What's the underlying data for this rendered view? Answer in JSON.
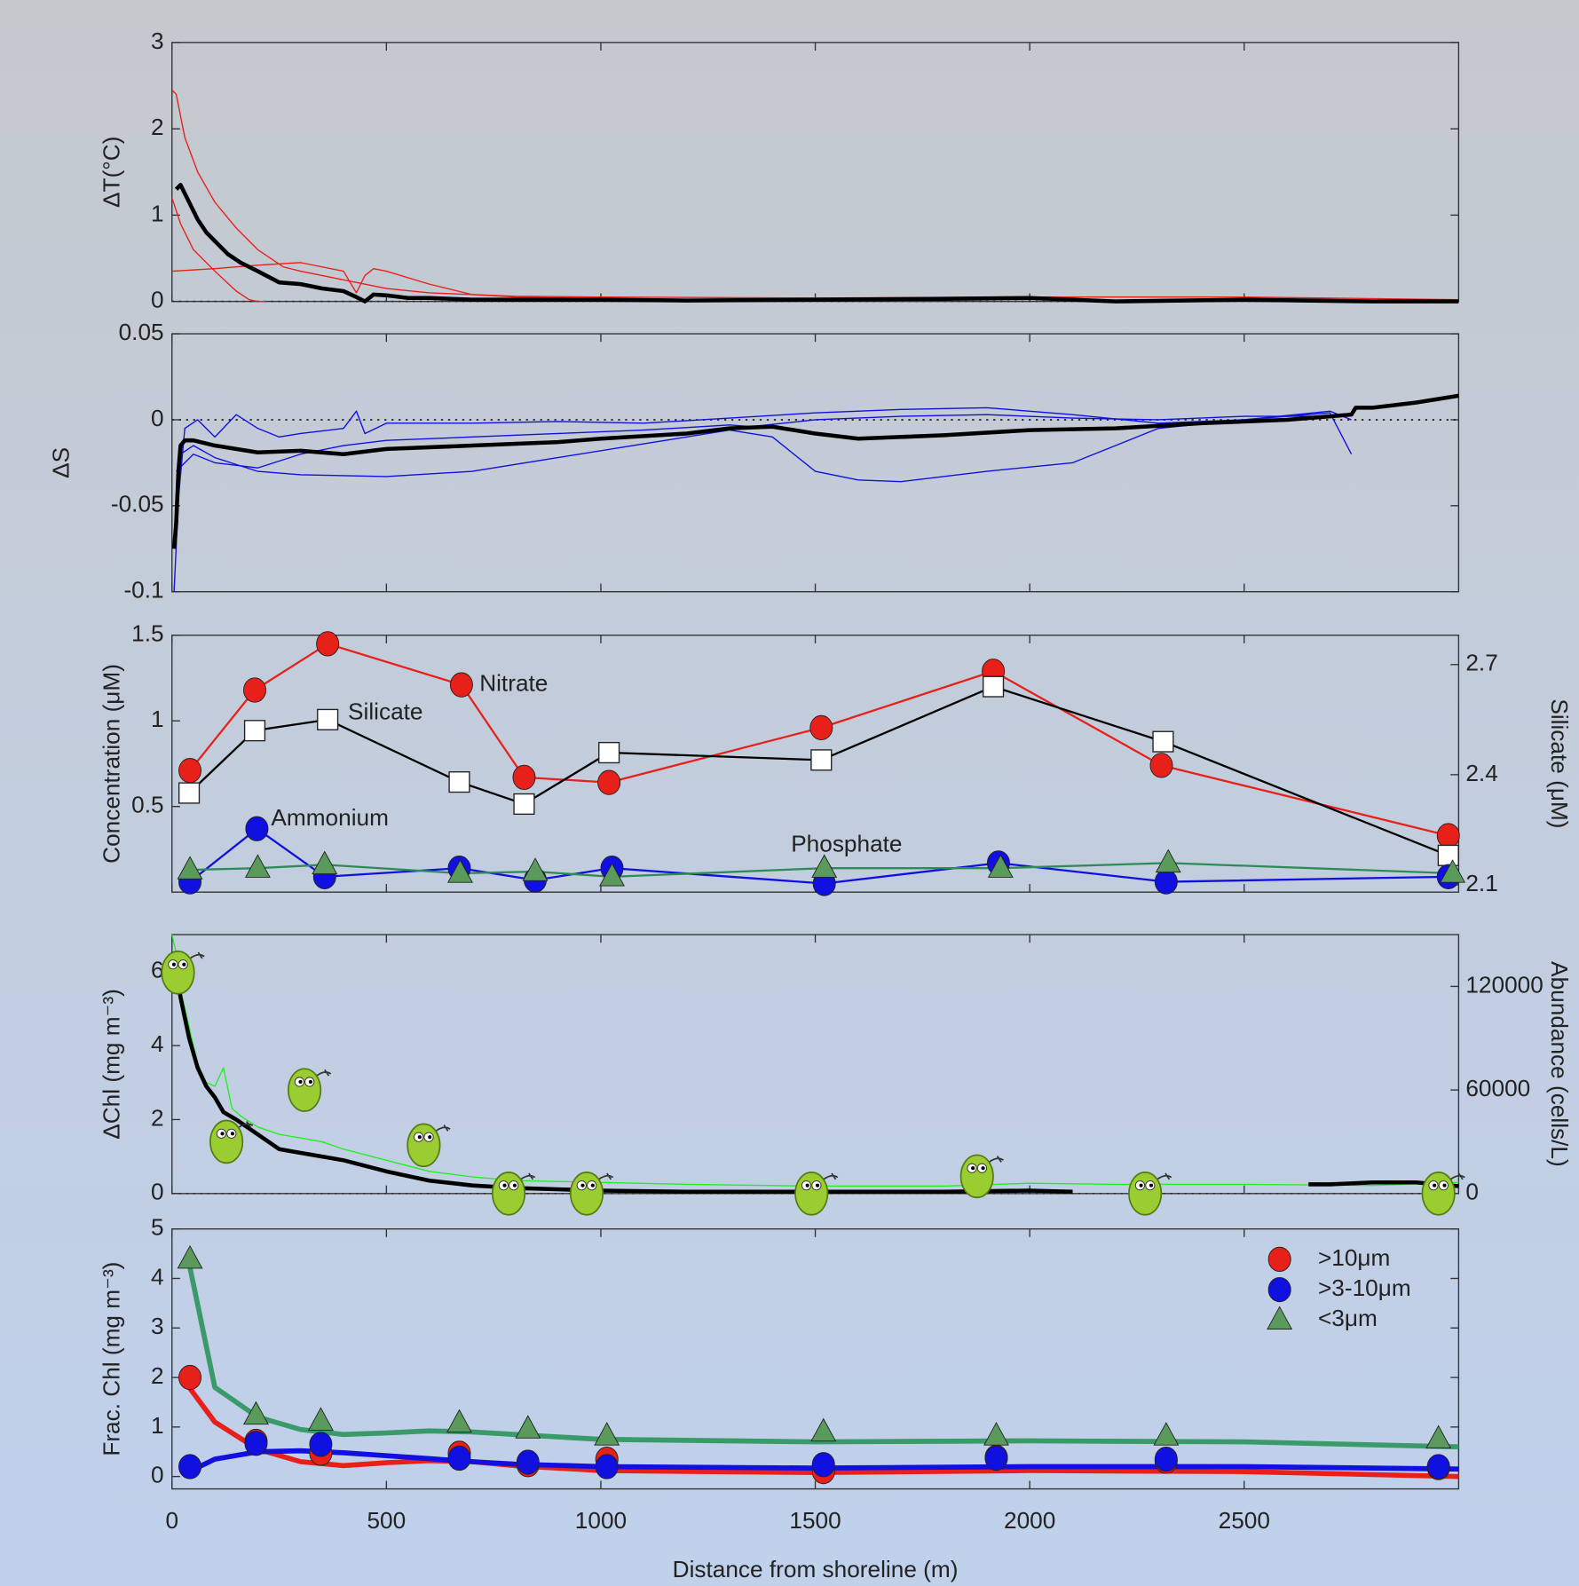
{
  "chart_data": [
    {
      "type": "line",
      "ylabel": "ΔT(°C)",
      "ylim": [
        0,
        3
      ],
      "yticks": [
        0,
        1,
        2,
        3
      ],
      "zero_line": true,
      "series": [
        {
          "color": "#e8201a",
          "width": 1.2,
          "x": [
            0,
            10,
            30,
            60,
            100,
            150,
            200,
            260,
            300,
            350,
            400,
            500,
            600,
            800,
            1000,
            1500,
            2000,
            2500,
            3000
          ],
          "values": [
            2.45,
            2.4,
            1.9,
            1.5,
            1.15,
            0.85,
            0.6,
            0.4,
            0.35,
            0.3,
            0.25,
            0.15,
            0.1,
            0.06,
            0.05,
            0.04,
            0.05,
            0.05,
            0.02
          ]
        },
        {
          "color": "#e8201a",
          "width": 1.2,
          "x": [
            0,
            20,
            50,
            100,
            150,
            180,
            200,
            220
          ],
          "values": [
            1.2,
            0.9,
            0.6,
            0.35,
            0.12,
            0.02,
            0,
            0
          ]
        },
        {
          "color": "#e8201a",
          "width": 1.2,
          "x": [
            0,
            100,
            200,
            300,
            400,
            430,
            450,
            470,
            500,
            600,
            700,
            800,
            1000
          ],
          "values": [
            0.35,
            0.38,
            0.42,
            0.45,
            0.35,
            0.1,
            0.3,
            0.38,
            0.35,
            0.2,
            0.08,
            0.05,
            0.03
          ]
        },
        {
          "color": "#000000",
          "width": 4,
          "x": [
            10,
            20,
            40,
            60,
            80,
            100,
            130,
            160,
            200,
            250,
            300,
            350,
            400,
            430,
            450,
            470,
            500,
            550,
            600,
            700,
            800,
            1000,
            1200,
            1500,
            1800,
            2000,
            2200,
            2500,
            2800,
            3000
          ],
          "values": [
            1.3,
            1.35,
            1.15,
            0.95,
            0.8,
            0.7,
            0.55,
            0.45,
            0.35,
            0.22,
            0.2,
            0.15,
            0.12,
            0.05,
            0,
            0.08,
            0.07,
            0.04,
            0.04,
            0.02,
            0.02,
            0.02,
            0.01,
            0.02,
            0.03,
            0.04,
            0,
            0.02,
            0,
            0
          ]
        }
      ]
    },
    {
      "type": "line",
      "ylabel": "ΔS",
      "ylim": [
        -0.1,
        0.05
      ],
      "yticks": [
        -0.1,
        -0.05,
        0,
        0.05
      ],
      "zero_line": true,
      "series": [
        {
          "color": "#1010e0",
          "width": 1.2,
          "x": [
            5,
            20,
            50,
            100,
            200,
            300,
            500,
            700,
            900,
            1100,
            1300,
            1400,
            1500,
            1600,
            1700,
            1900,
            2100,
            2300,
            2500,
            2700,
            2750
          ],
          "values": [
            -0.1,
            -0.02,
            -0.015,
            -0.022,
            -0.03,
            -0.032,
            -0.033,
            -0.03,
            -0.022,
            -0.014,
            -0.006,
            -0.01,
            -0.03,
            -0.035,
            -0.036,
            -0.03,
            -0.025,
            -0.005,
            0,
            0.005,
            0
          ]
        },
        {
          "color": "#1010e0",
          "width": 1.2,
          "x": [
            10,
            30,
            60,
            100,
            150,
            200,
            250,
            300,
            400,
            430,
            450,
            500,
            700,
            900,
            1100,
            1300,
            1500,
            1700,
            1900,
            2100,
            2300,
            2500,
            2700,
            2750
          ],
          "values": [
            -0.06,
            -0.005,
            0,
            -0.01,
            0.003,
            -0.005,
            -0.01,
            -0.008,
            -0.005,
            0.005,
            -0.008,
            -0.002,
            -0.002,
            -0.001,
            -0.002,
            0.001,
            0.004,
            0.006,
            0.007,
            0.003,
            -0.002,
            0,
            0.004,
            -0.02
          ]
        },
        {
          "color": "#1010e0",
          "width": 1.2,
          "x": [
            10,
            50,
            100,
            200,
            300,
            400,
            500,
            700,
            900,
            1100,
            1300,
            1350,
            1500,
            1700,
            1900,
            2100,
            2300,
            2500,
            2700
          ],
          "values": [
            -0.03,
            -0.02,
            -0.025,
            -0.028,
            -0.02,
            -0.015,
            -0.012,
            -0.01,
            -0.008,
            -0.006,
            -0.003,
            -0.004,
            0,
            0.002,
            0.003,
            0.001,
            0,
            0.002,
            0.002
          ]
        },
        {
          "color": "#000000",
          "width": 4,
          "x": [
            5,
            10,
            15,
            20,
            30,
            50,
            100,
            200,
            300,
            400,
            500,
            700,
            900,
            1000,
            1200,
            1300,
            1400,
            1500,
            1600,
            1800,
            2000,
            2200,
            2400,
            2600,
            2700,
            2750,
            2760,
            2800,
            2900,
            3000
          ],
          "values": [
            -0.075,
            -0.06,
            -0.03,
            -0.015,
            -0.012,
            -0.012,
            -0.015,
            -0.019,
            -0.018,
            -0.02,
            -0.017,
            -0.015,
            -0.013,
            -0.011,
            -0.008,
            -0.005,
            -0.004,
            -0.008,
            -0.011,
            -0.009,
            -0.006,
            -0.005,
            -0.002,
            0,
            0.002,
            0.003,
            0.007,
            0.007,
            0.01,
            0.014
          ]
        }
      ]
    },
    {
      "type": "line",
      "ylabel": "Concentration (μM)",
      "y2label": "Silicate (μM)",
      "ylim": [
        0,
        1.5
      ],
      "yticks": [
        0.5,
        1,
        1.5
      ],
      "y2lim": [
        2.08,
        2.78
      ],
      "y2ticks": [
        2.1,
        2.4,
        2.7
      ],
      "series": [
        {
          "name": "Nitrate",
          "color": "#e8201a",
          "width": 2,
          "marker": "circle",
          "x": [
            42,
            193,
            363,
            675,
            821,
            1019,
            1514,
            1915,
            2307,
            2976
          ],
          "values": [
            0.71,
            1.18,
            1.45,
            1.21,
            0.67,
            0.64,
            0.96,
            1.29,
            0.74,
            0.33
          ]
        },
        {
          "name": "Silicate",
          "color": "#000000",
          "marker_fill": "#ffffff",
          "width": 2,
          "marker": "square",
          "axis": "y2",
          "x": [
            40,
            193,
            363,
            670,
            821,
            1019,
            1514,
            1915,
            2311,
            2976
          ],
          "values": [
            2.35,
            2.52,
            2.55,
            2.38,
            2.32,
            2.46,
            2.44,
            2.64,
            2.49,
            2.18
          ]
        },
        {
          "name": "Ammonium",
          "color": "#1010e0",
          "width": 2,
          "marker": "circle",
          "x": [
            42,
            198,
            356,
            670,
            847,
            1026,
            1521,
            1927,
            2318,
            2976
          ],
          "values": [
            0.06,
            0.37,
            0.09,
            0.14,
            0.07,
            0.14,
            0.05,
            0.17,
            0.06,
            0.09
          ]
        },
        {
          "name": "Phosphate",
          "color": "#2e8b57",
          "marker_fill": "#5a9a5a",
          "width": 2,
          "marker": "triangle",
          "x": [
            42,
            200,
            356,
            672,
            847,
            1026,
            1521,
            1932,
            2323,
            2986
          ],
          "values": [
            0.13,
            0.14,
            0.16,
            0.11,
            0.12,
            0.09,
            0.14,
            0.14,
            0.17,
            0.11
          ]
        }
      ]
    },
    {
      "type": "line",
      "ylabel": "ΔChl (mg m⁻³)",
      "y2label": "Abundance (cells/L)",
      "ylim": [
        0,
        7
      ],
      "yticks": [
        0,
        2,
        4,
        6
      ],
      "y2lim": [
        0,
        150000
      ],
      "y2ticks": [
        0,
        60000,
        120000
      ],
      "zero_line": true,
      "series": [
        {
          "color": "#22ee22",
          "width": 1.2,
          "x": [
            0,
            10,
            20,
            40,
            60,
            80,
            100,
            120,
            140,
            160,
            200,
            250,
            300,
            350,
            400,
            500,
            600,
            700,
            800,
            1000,
            1200,
            1500,
            1800,
            2000,
            2200,
            2500,
            2800,
            3000
          ],
          "values": [
            7,
            6.5,
            5.5,
            4.5,
            3.5,
            3,
            2.9,
            3.4,
            2.3,
            2.1,
            1.8,
            1.6,
            1.5,
            1.4,
            1.2,
            0.9,
            0.6,
            0.45,
            0.35,
            0.3,
            0.25,
            0.2,
            0.2,
            0.28,
            0.25,
            0.25,
            0.22,
            0.3
          ]
        },
        {
          "color": "#000000",
          "width": 4,
          "x": [
            5,
            10,
            20,
            40,
            60,
            80,
            100,
            120,
            150,
            200,
            250,
            300,
            350,
            400,
            500,
            600,
            700,
            800,
            1000,
            1200,
            1500,
            1800,
            2000,
            2100,
            2400,
            2650,
            2700,
            2800,
            2900,
            3000
          ],
          "values": [
            6.3,
            6,
            5.3,
            4.2,
            3.4,
            2.9,
            2.6,
            2.2,
            2,
            1.6,
            1.2,
            1.1,
            1,
            0.9,
            0.6,
            0.35,
            0.22,
            0.15,
            0.08,
            0.05,
            0.05,
            0.05,
            0.08,
            0.05,
            null,
            0.25,
            0.25,
            0.3,
            0.3,
            0.2
          ]
        },
        {
          "color": "#9acd32",
          "marker": "cell",
          "connect": false,
          "axis": "y2",
          "x": [
            14,
            127,
            309,
            587,
            785,
            967,
            1491,
            1877,
            2269,
            2953
          ],
          "values": [
            128000,
            30000,
            60000,
            28000,
            0,
            0,
            0,
            10000,
            0,
            0
          ]
        }
      ]
    },
    {
      "type": "line",
      "ylabel": "Frac. Chl (mg m⁻³)",
      "xlabel": "Distance from shoreline (m)",
      "xlim": [
        0,
        3000
      ],
      "xticks": [
        0,
        500,
        1000,
        1500,
        2000,
        2500
      ],
      "ylim": [
        -0.25,
        5
      ],
      "yticks": [
        0,
        1,
        2,
        3,
        4,
        5
      ],
      "legend": "upper right",
      "x": [
        42,
        196,
        347,
        670,
        830,
        1014,
        1519,
        1922,
        2318,
        2953
      ],
      "fit_x": [
        40,
        100,
        200,
        300,
        400,
        500,
        600,
        700,
        800,
        1000,
        1500,
        2000,
        2500,
        3000
      ],
      "series": [
        {
          "name": ">10μm",
          "color": "#e8201a",
          "width": 5,
          "marker": "circle",
          "connect": false,
          "values": [
            2,
            0.71,
            0.47,
            0.47,
            0.24,
            0.35,
            0.1,
            0.39,
            0.31,
            0.18
          ],
          "fit": [
            1.8,
            1.1,
            0.55,
            0.3,
            0.22,
            0.28,
            0.32,
            0.3,
            0.22,
            0.12,
            0.08,
            0.12,
            0.1,
            0
          ]
        },
        {
          "name": ">3-10μm",
          "color": "#1010e0",
          "width": 5,
          "marker": "circle",
          "connect": false,
          "values": [
            0.2,
            0.67,
            0.65,
            0.37,
            0.29,
            0.2,
            0.24,
            0.37,
            0.35,
            0.2
          ],
          "fit": [
            0.1,
            0.35,
            0.5,
            0.52,
            0.48,
            0.42,
            0.36,
            0.3,
            0.25,
            0.2,
            0.17,
            0.2,
            0.2,
            0.15
          ]
        },
        {
          "name": "<3μm",
          "color": "#3a9a6a",
          "marker_fill": "#5a9a5a",
          "width": 5,
          "marker": "triangle",
          "connect": false,
          "values": [
            4.39,
            1.24,
            1.12,
            1.08,
            0.96,
            0.82,
            0.9,
            0.82,
            0.82,
            0.76
          ],
          "fit": [
            4.3,
            1.8,
            1.2,
            0.95,
            0.85,
            0.88,
            0.92,
            0.9,
            0.85,
            0.75,
            0.7,
            0.72,
            0.7,
            0.6
          ]
        }
      ]
    }
  ]
}
